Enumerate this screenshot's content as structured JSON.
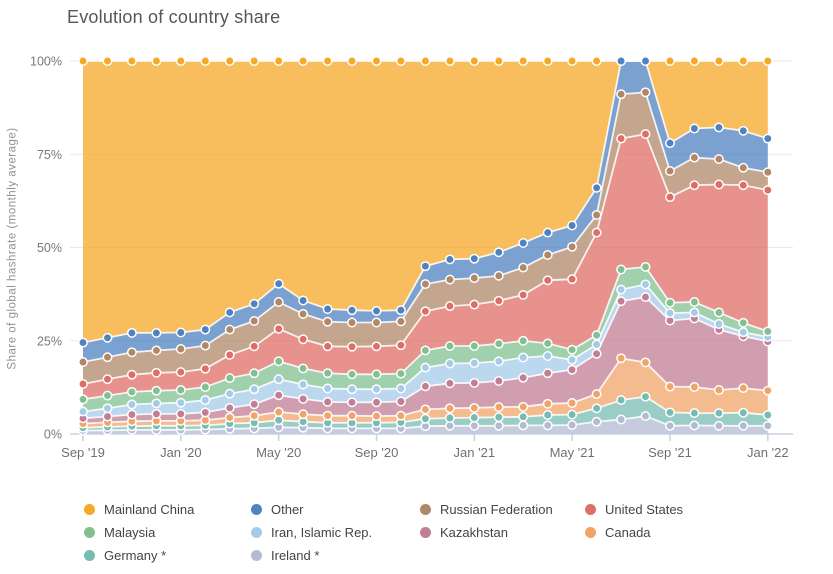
{
  "title": "Evolution of country share",
  "y_axis": {
    "title": "Share of global hashrate (monthly average)",
    "ticks": [
      {
        "label": "0%",
        "value": 0
      },
      {
        "label": "25%",
        "value": 25
      },
      {
        "label": "50%",
        "value": 50
      },
      {
        "label": "75%",
        "value": 75
      },
      {
        "label": "100%",
        "value": 100
      }
    ]
  },
  "x_axis": {
    "tick_labels": [
      "Sep '19",
      "Jan '20",
      "May '20",
      "Sep '20",
      "Jan '21",
      "May '21",
      "Sep '21",
      "Jan '22"
    ],
    "tick_month_indices": [
      0,
      4,
      8,
      12,
      16,
      20,
      24,
      28
    ]
  },
  "chart_data": {
    "type": "area",
    "stacked": true,
    "unit": "%",
    "ylim": [
      0,
      100
    ],
    "grid": "horizontal",
    "x": [
      "Sep '19",
      "Oct '19",
      "Nov '19",
      "Dec '19",
      "Jan '20",
      "Feb '20",
      "Mar '20",
      "Apr '20",
      "May '20",
      "Jun '20",
      "Jul '20",
      "Aug '20",
      "Sep '20",
      "Oct '20",
      "Nov '20",
      "Dec '20",
      "Jan '21",
      "Feb '21",
      "Mar '21",
      "Apr '21",
      "May '21",
      "Jun '21",
      "Jul '21",
      "Aug '21",
      "Sep '21",
      "Oct '21",
      "Nov '21",
      "Dec '21",
      "Jan '22"
    ],
    "series": [
      {
        "name": "Ireland *",
        "color": "#B3BAD2",
        "values": [
          0.9,
          1.0,
          1.1,
          1.1,
          1.1,
          1.2,
          1.4,
          1.5,
          1.8,
          1.7,
          1.5,
          1.5,
          1.5,
          1.5,
          2.1,
          2.2,
          2.2,
          2.2,
          2.3,
          2.3,
          2.4,
          3.3,
          3.9,
          4.8,
          2.2,
          2.3,
          2.2,
          2.2,
          2.2
        ]
      },
      {
        "name": "Germany *",
        "color": "#77BCB2",
        "values": [
          0.8,
          0.9,
          1.0,
          1.1,
          1.1,
          1.1,
          1.4,
          1.5,
          1.9,
          1.6,
          1.5,
          1.5,
          1.5,
          1.6,
          2.0,
          2.1,
          2.2,
          2.3,
          2.3,
          2.8,
          2.8,
          3.6,
          5.2,
          5.2,
          3.6,
          3.3,
          3.4,
          3.5,
          2.9
        ]
      },
      {
        "name": "Canada",
        "color": "#F0A46A",
        "values": [
          1.1,
          1.2,
          1.3,
          1.3,
          1.3,
          1.4,
          1.6,
          1.9,
          2.2,
          2.0,
          1.9,
          1.9,
          1.8,
          1.8,
          2.5,
          2.6,
          2.6,
          2.7,
          2.7,
          3.0,
          3.1,
          3.8,
          11.2,
          9.2,
          6.9,
          7.0,
          6.2,
          6.6,
          6.5
        ]
      },
      {
        "name": "Kazakhstan",
        "color": "#C17E95",
        "values": [
          1.4,
          1.6,
          1.8,
          1.9,
          1.9,
          2.1,
          2.6,
          3.1,
          4.5,
          4.1,
          3.7,
          3.6,
          3.7,
          3.8,
          6.2,
          6.7,
          6.7,
          7.0,
          7.8,
          8.2,
          8.9,
          10.8,
          15.3,
          17.5,
          17.7,
          18.4,
          16.2,
          13.9,
          13.2
        ]
      },
      {
        "name": "Iran, Islamic Rep.",
        "color": "#A5CBEA",
        "values": [
          1.8,
          2.2,
          2.7,
          2.8,
          3.0,
          3.3,
          3.8,
          4.0,
          4.3,
          3.9,
          3.6,
          3.5,
          3.5,
          3.5,
          5.0,
          5.3,
          5.3,
          5.3,
          5.4,
          4.6,
          2.7,
          2.5,
          3.1,
          3.4,
          2.0,
          1.6,
          1.5,
          1.1,
          1.2
        ]
      },
      {
        "name": "Malaysia",
        "color": "#82C091",
        "values": [
          3.3,
          3.4,
          3.4,
          3.4,
          3.4,
          3.5,
          4.2,
          4.3,
          4.8,
          4.3,
          4.1,
          4.0,
          4.0,
          4.0,
          4.6,
          4.7,
          4.6,
          4.7,
          4.5,
          3.4,
          2.7,
          2.5,
          5.4,
          4.7,
          2.8,
          2.8,
          3.1,
          2.5,
          1.5
        ]
      },
      {
        "name": "United States",
        "color": "#DF6E66",
        "values": [
          4.1,
          4.4,
          4.6,
          4.8,
          4.8,
          4.9,
          6.2,
          7.2,
          8.7,
          7.8,
          7.2,
          7.4,
          7.5,
          7.6,
          10.5,
          10.7,
          11.1,
          11.5,
          12.3,
          16.9,
          18.9,
          27.5,
          35.1,
          35.6,
          28.3,
          31.3,
          34.3,
          36.9,
          37.9
        ]
      },
      {
        "name": "Russian Federation",
        "color": "#B08767",
        "values": [
          5.9,
          5.9,
          6.0,
          6.0,
          6.2,
          6.2,
          6.8,
          6.8,
          7.2,
          6.8,
          6.6,
          6.5,
          6.4,
          6.4,
          7.3,
          7.1,
          7.1,
          6.7,
          7.3,
          6.8,
          8.7,
          4.7,
          11.9,
          11.2,
          7.0,
          7.4,
          6.8,
          4.7,
          4.8
        ]
      },
      {
        "name": "Other",
        "color": "#4E82C0",
        "values": [
          5.2,
          5.2,
          5.2,
          4.7,
          4.4,
          4.3,
          4.6,
          4.6,
          4.9,
          3.6,
          3.4,
          3.3,
          3.1,
          3.0,
          4.8,
          5.4,
          5.2,
          6.3,
          6.6,
          6.0,
          5.7,
          7.3,
          8.9,
          8.4,
          7.5,
          7.8,
          8.5,
          9.9,
          9.0
        ]
      },
      {
        "name": "Mainland China",
        "color": "#F6A828",
        "values": [
          75.5,
          74.2,
          72.9,
          72.9,
          72.8,
          72.0,
          67.4,
          65.1,
          59.7,
          64.2,
          66.5,
          66.8,
          67.0,
          66.8,
          55.0,
          53.2,
          53.0,
          51.3,
          48.8,
          46.0,
          44.1,
          34.0,
          0,
          0,
          22.0,
          18.1,
          17.8,
          18.7,
          20.8
        ]
      }
    ]
  },
  "legend": {
    "columns": [
      [
        "Mainland China",
        "Malaysia",
        "Germany *"
      ],
      [
        "Other",
        "Iran, Islamic Rep.",
        "Ireland *"
      ],
      [
        "Russian Federation",
        "Kazakhstan"
      ],
      [
        "United States",
        "Canada"
      ]
    ]
  }
}
